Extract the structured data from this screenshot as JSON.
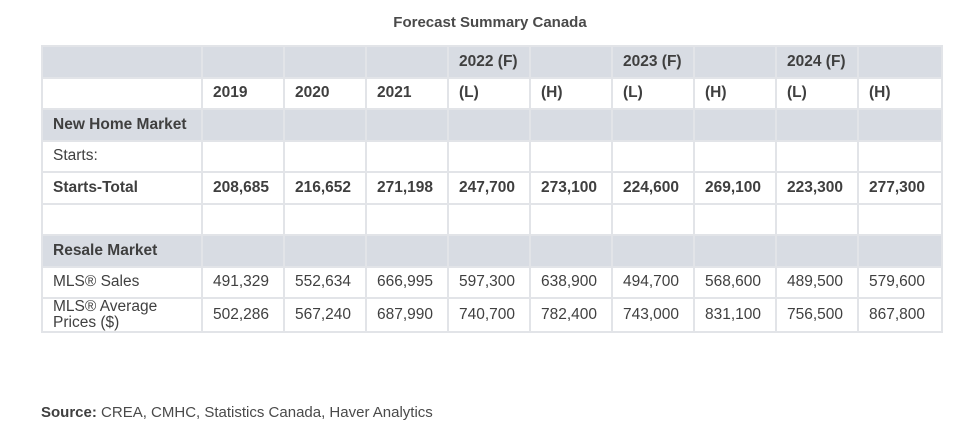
{
  "title": "Forecast Summary Canada",
  "header": {
    "groups": [
      "",
      "",
      "",
      "",
      "2022 (F)",
      "",
      "2023 (F)",
      "",
      "2024 (F)",
      ""
    ],
    "columns": [
      "",
      "2019",
      "2020",
      "2021",
      "(L)",
      "(H)",
      "(L)",
      "(H)",
      "(L)",
      "(H)"
    ]
  },
  "rows": [
    {
      "label": "New Home Market",
      "values": [
        "",
        "",
        "",
        "",
        "",
        "",
        "",
        "",
        ""
      ]
    },
    {
      "label": "Starts:",
      "values": [
        "",
        "",
        "",
        "",
        "",
        "",
        "",
        "",
        ""
      ]
    },
    {
      "label": "Starts-Total",
      "values": [
        "208,685",
        "216,652",
        "271,198",
        "247,700",
        "273,100",
        "224,600",
        "269,100",
        "223,300",
        "277,300"
      ]
    },
    {
      "label": "",
      "values": [
        "",
        "",
        "",
        "",
        "",
        "",
        "",
        "",
        ""
      ]
    },
    {
      "label": "Resale Market",
      "values": [
        "",
        "",
        "",
        "",
        "",
        "",
        "",
        "",
        ""
      ]
    },
    {
      "label": "MLS® Sales",
      "values": [
        "491,329",
        "552,634",
        "666,995",
        "597,300",
        "638,900",
        "494,700",
        "568,600",
        "489,500",
        "579,600"
      ]
    },
    {
      "label": "MLS® Average Prices ($)",
      "values": [
        "502,286",
        "567,240",
        "687,990",
        "740,700",
        "782,400",
        "743,000",
        "831,100",
        "756,500",
        "867,800"
      ]
    }
  ],
  "source": {
    "label": "Source:",
    "text": " CREA, CMHC, Statistics Canada, Haver Analytics"
  }
}
